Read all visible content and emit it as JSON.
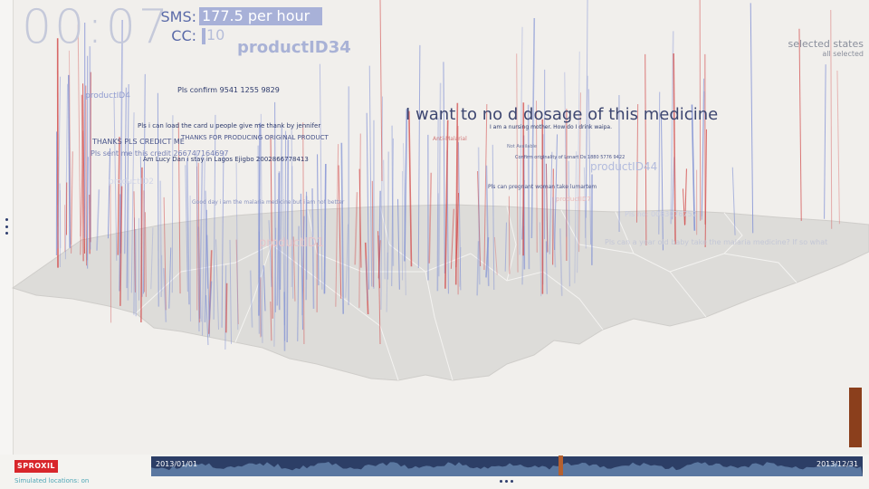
{
  "clock": "00:07",
  "metrics": {
    "sms_label": "SMS:",
    "sms_value": "177.5 per hour",
    "cc_label": "CC:",
    "cc_value": "10"
  },
  "selected_states": {
    "title": "selected states",
    "subtitle": "all selected"
  },
  "messages": [
    {
      "text": "productID34",
      "big": true
    },
    {
      "text": "productID4"
    },
    {
      "text": "Pls confirm 9541 1255 9829"
    },
    {
      "text": "Pls i can load the card u people give me thank by jennifer"
    },
    {
      "text": "THANKS FOR PRODUCING ORIGINAL PRODUCT"
    },
    {
      "text": "THANKS PLS CREDICT ME"
    },
    {
      "text": "Pls sent me this credit 266747164697"
    },
    {
      "text": "Am Lucy Dan i stay in Lagos Ejigbo 2002866778413"
    },
    {
      "text": "I want to no d dosage of this medicine",
      "headline": true
    },
    {
      "text": "I am a nursing mother. How do I drink waipa."
    },
    {
      "text": "Anti-Malarial"
    },
    {
      "text": "Not Available"
    },
    {
      "text": "Confirm originality of Lonart Ds 1880 5776 9422"
    },
    {
      "text": "productID44"
    },
    {
      "text": "Pls can pregnant woman take lumartem"
    },
    {
      "text": "productID2"
    },
    {
      "text": "Good day i am the malaria medicine but i am not better"
    },
    {
      "text": "Pls can a year old baby take the malaria medicine? If so what"
    },
    {
      "text": "productID1"
    },
    {
      "text": "productID7"
    },
    {
      "text": "Pls no: 0083076752"
    }
  ],
  "logo": "SPROXIL",
  "simulated_locations": "Simulated locations: on",
  "timeline": {
    "start": "2013/01/01",
    "end": "2013/12/31"
  },
  "colors": {
    "background": "#f1efec",
    "map": "#dddcd9",
    "sms_line": "#7f8fd4",
    "cc_line": "#d24a4a",
    "timeline": "#2c3e66",
    "accent_orange": "#b5602f",
    "logo_red": "#d8262b"
  }
}
